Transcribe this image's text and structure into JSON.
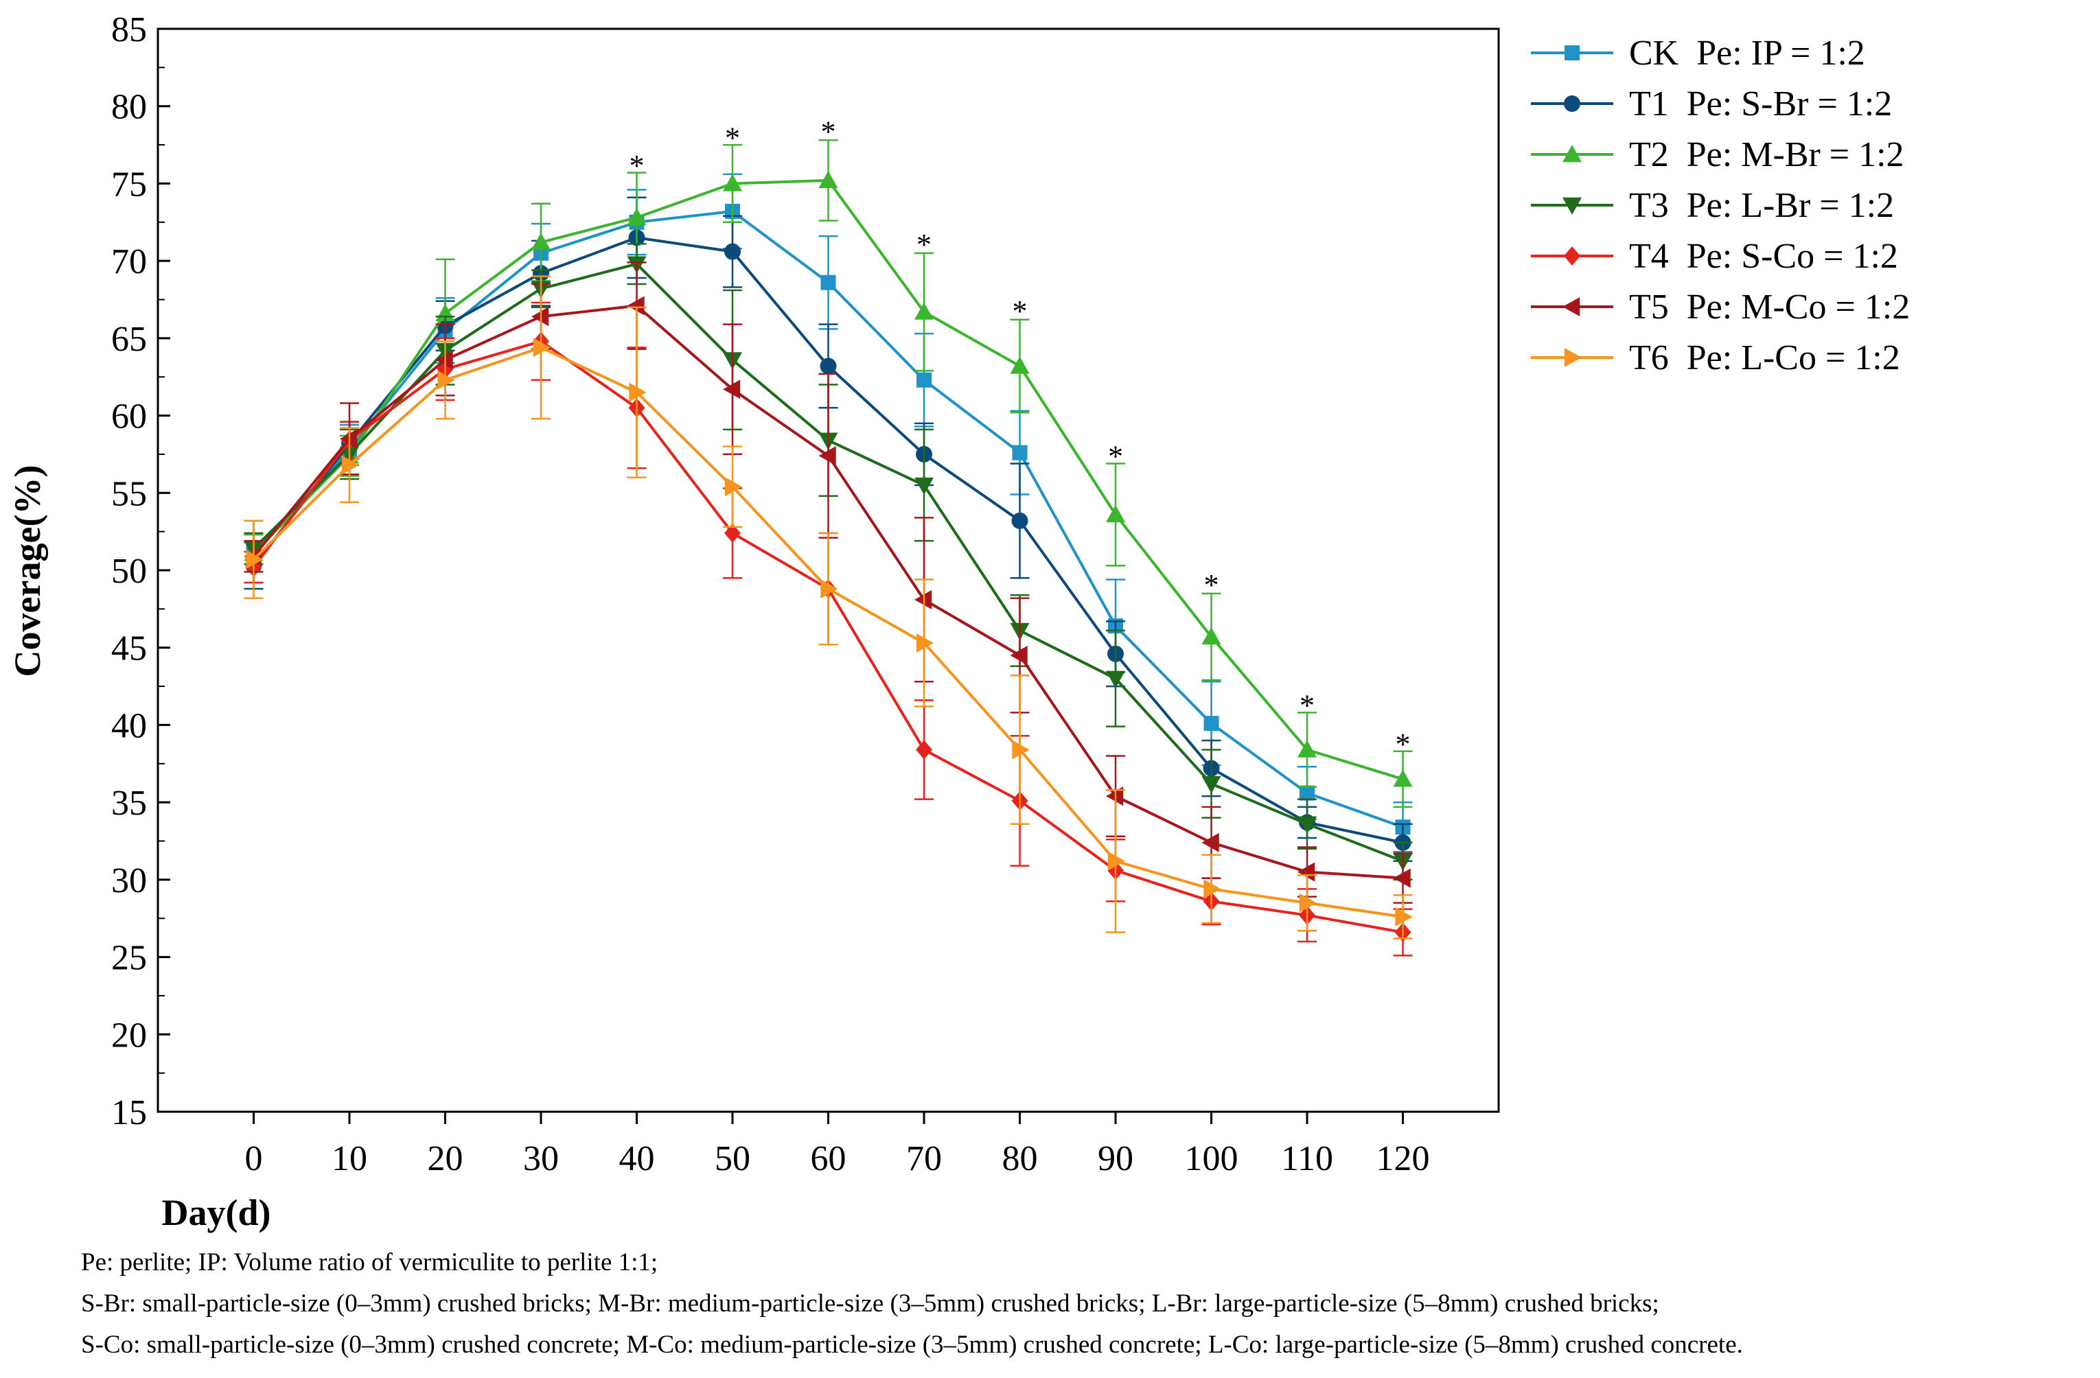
{
  "chart_data": {
    "type": "line",
    "title": "",
    "xlabel": "Day(d)",
    "ylabel": "Coverage(%)",
    "xlim": [
      -10,
      130
    ],
    "ylim": [
      15,
      85
    ],
    "x_ticks": [
      0,
      10,
      20,
      30,
      40,
      50,
      60,
      70,
      80,
      90,
      100,
      110,
      120
    ],
    "y_ticks": [
      15,
      20,
      25,
      30,
      35,
      40,
      45,
      50,
      55,
      60,
      65,
      70,
      75,
      80,
      85
    ],
    "x": [
      0,
      10,
      20,
      30,
      40,
      50,
      60,
      70,
      80,
      90,
      100,
      110,
      120
    ],
    "series": [
      {
        "name": "CK  Pe: IP = 1:2",
        "color": "#1F93C7",
        "marker": "square",
        "values": [
          51.2,
          57.8,
          65.5,
          70.5,
          72.5,
          73.2,
          68.6,
          62.3,
          57.6,
          46.4,
          40.1,
          35.6,
          33.4
        ],
        "errors": [
          2.0,
          1.6,
          2.1,
          1.9,
          2.1,
          2.4,
          3.0,
          3.0,
          2.7,
          3.0,
          2.7,
          1.7,
          1.6
        ]
      },
      {
        "name": "T1  Pe: S-Br = 1:2",
        "color": "#0B4A7A",
        "marker": "circle",
        "values": [
          50.3,
          58.2,
          65.8,
          69.2,
          71.5,
          70.6,
          63.2,
          57.5,
          53.2,
          44.6,
          37.2,
          33.7,
          32.4
        ],
        "errors": [
          1.5,
          1.4,
          1.6,
          2.1,
          2.6,
          2.3,
          2.7,
          2.0,
          3.7,
          2.1,
          1.8,
          1.0,
          1.2
        ]
      },
      {
        "name": "T2  Pe: M-Br = 1:2",
        "color": "#3CB52E",
        "marker": "triangle-up",
        "values": [
          51.1,
          57.4,
          66.6,
          71.2,
          72.8,
          75.0,
          75.2,
          66.7,
          63.2,
          53.6,
          45.7,
          38.4,
          36.5
        ],
        "errors": [
          1.2,
          1.3,
          3.5,
          2.5,
          2.9,
          2.5,
          2.6,
          3.8,
          3.0,
          3.3,
          2.8,
          2.4,
          1.8
        ]
      },
      {
        "name": "T3  Pe: L-Br = 1:2",
        "color": "#1E6B1A",
        "marker": "triangle-down",
        "values": [
          51.4,
          57.5,
          64.2,
          68.2,
          69.8,
          63.6,
          58.4,
          55.5,
          46.1,
          43.0,
          36.2,
          33.6,
          31.2
        ],
        "errors": [
          1.0,
          1.6,
          2.2,
          1.2,
          1.3,
          4.5,
          3.6,
          3.6,
          2.3,
          3.1,
          2.2,
          1.6,
          1.2
        ]
      },
      {
        "name": "T4  Pe: S-Co = 1:2",
        "color": "#E8231C",
        "marker": "diamond",
        "values": [
          50.2,
          58.4,
          63.0,
          64.8,
          60.5,
          52.4,
          48.8,
          38.4,
          35.1,
          30.6,
          28.6,
          27.7,
          26.6
        ],
        "errors": [
          1.0,
          1.2,
          2.0,
          2.5,
          3.9,
          2.9,
          3.6,
          3.2,
          4.2,
          2.0,
          1.5,
          1.7,
          1.5
        ]
      },
      {
        "name": "T5  Pe: M-Co = 1:2",
        "color": "#A6161B",
        "marker": "triangle-left",
        "values": [
          50.9,
          58.5,
          63.6,
          66.4,
          67.1,
          61.7,
          57.4,
          48.1,
          44.5,
          35.4,
          32.4,
          30.5,
          30.1
        ],
        "errors": [
          1.0,
          2.3,
          2.3,
          2.1,
          2.8,
          4.2,
          5.3,
          5.3,
          3.7,
          2.6,
          2.3,
          1.6,
          1.6
        ]
      },
      {
        "name": "T6  Pe: L-Co = 1:2",
        "color": "#F7941D",
        "marker": "triangle-right",
        "values": [
          50.7,
          56.8,
          62.3,
          64.4,
          61.5,
          55.4,
          48.8,
          45.3,
          38.4,
          31.2,
          29.4,
          28.5,
          27.6
        ],
        "errors": [
          2.5,
          2.4,
          2.5,
          4.6,
          5.5,
          2.6,
          3.6,
          4.1,
          4.8,
          4.6,
          2.2,
          1.8,
          1.4
        ]
      }
    ],
    "significance_marks": [
      {
        "x": 40,
        "y": 76.4,
        "label": "*"
      },
      {
        "x": 50,
        "y": 78.2,
        "label": "*"
      },
      {
        "x": 60,
        "y": 78.6,
        "label": "*"
      },
      {
        "x": 70,
        "y": 71.3,
        "label": "*"
      },
      {
        "x": 80,
        "y": 67.0,
        "label": "*"
      },
      {
        "x": 90,
        "y": 57.6,
        "label": "*"
      },
      {
        "x": 100,
        "y": 49.3,
        "label": "*"
      },
      {
        "x": 110,
        "y": 41.5,
        "label": "*"
      },
      {
        "x": 120,
        "y": 39.0,
        "label": "*"
      }
    ]
  },
  "footnotes": {
    "line1": "Pe: perlite; IP: Volume ratio of vermiculite to perlite 1:1;",
    "line2": "S-Br: small-particle-size (0–3mm) crushed bricks; M-Br: medium-particle-size (3–5mm) crushed bricks; L-Br: large-particle-size (5–8mm) crushed bricks;",
    "line3": "S-Co: small-particle-size (0–3mm) crushed concrete; M-Co: medium-particle-size (3–5mm) crushed concrete; L-Co: large-particle-size (5–8mm) crushed concrete."
  }
}
